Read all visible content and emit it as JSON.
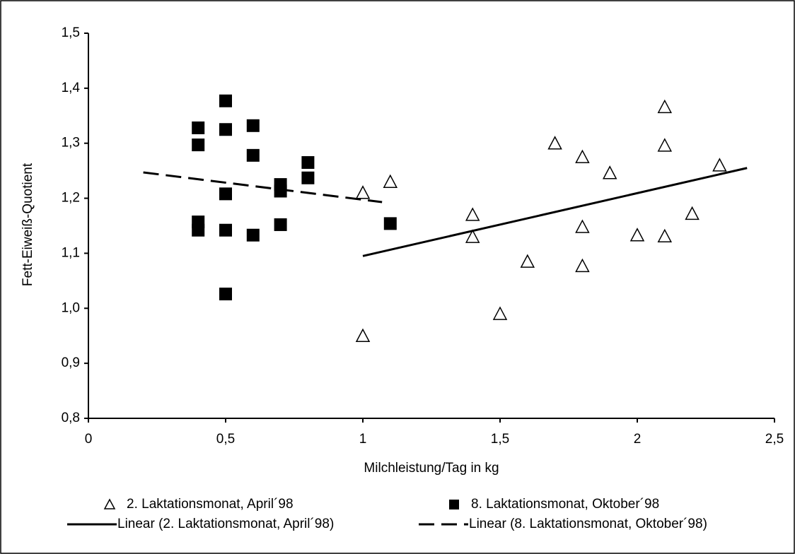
{
  "chart_data": {
    "type": "scatter",
    "x_label": "Milchleistung/Tag in kg",
    "y_label": "Fett-Eiweiß-Quotient",
    "xlim": [
      0,
      2.5
    ],
    "xticks": [
      0,
      {
        "value": 0.5,
        "label": "0,5"
      },
      1,
      {
        "value": 1.5,
        "label": "1,5"
      },
      2,
      {
        "value": 2.5,
        "label": "2,5"
      }
    ],
    "ylim": [
      0.8,
      1.5
    ],
    "yticks": [
      {
        "value": 0.8,
        "label": "0,8"
      },
      {
        "value": 0.9,
        "label": "0,9"
      },
      {
        "value": 1.0,
        "label": "1,0"
      },
      {
        "value": 1.1,
        "label": "1,1"
      },
      {
        "value": 1.2,
        "label": "1,2"
      },
      {
        "value": 1.3,
        "label": "1,3"
      },
      {
        "value": 1.4,
        "label": "1,4"
      },
      {
        "value": 1.5,
        "label": "1,5"
      }
    ],
    "grid": false,
    "legend": "bottom",
    "series": [
      {
        "name": "2. Laktationsmonat,  April´98",
        "type": "scatter",
        "marker": "triangle",
        "color": "#000000",
        "x": [
          1.0,
          1.1,
          1.0,
          1.4,
          1.4,
          1.5,
          1.6,
          1.7,
          1.8,
          1.8,
          1.8,
          1.9,
          2.0,
          2.1,
          2.1,
          2.1,
          2.2,
          2.3
        ],
        "values": [
          1.21,
          1.23,
          0.95,
          1.17,
          1.13,
          0.99,
          1.085,
          1.3,
          1.275,
          1.148,
          1.077,
          1.246,
          1.133,
          1.366,
          1.296,
          1.131,
          1.172,
          1.26
        ]
      },
      {
        "name": "8. Laktationsmonat, Oktober´98",
        "type": "scatter",
        "marker": "square",
        "color": "#000000",
        "x": [
          0.4,
          0.4,
          0.4,
          0.4,
          0.5,
          0.5,
          0.5,
          0.5,
          0.5,
          0.6,
          0.6,
          0.6,
          0.7,
          0.7,
          0.7,
          0.8,
          0.8,
          1.1
        ],
        "values": [
          1.328,
          1.297,
          1.157,
          1.142,
          1.377,
          1.325,
          1.208,
          1.142,
          1.026,
          1.332,
          1.278,
          1.133,
          1.225,
          1.213,
          1.152,
          1.265,
          1.237,
          1.154
        ]
      },
      {
        "name": "Linear (2. Laktationsmonat,  April´98)",
        "type": "line",
        "dash": "solid",
        "color": "#000000",
        "x": [
          1.0,
          2.4
        ],
        "values": [
          1.095,
          1.255
        ]
      },
      {
        "name": "Linear (8. Laktationsmonat, Oktober´98)",
        "type": "line",
        "dash": "dashed",
        "color": "#000000",
        "x": [
          0.2,
          1.07
        ],
        "values": [
          1.247,
          1.193
        ]
      }
    ]
  }
}
